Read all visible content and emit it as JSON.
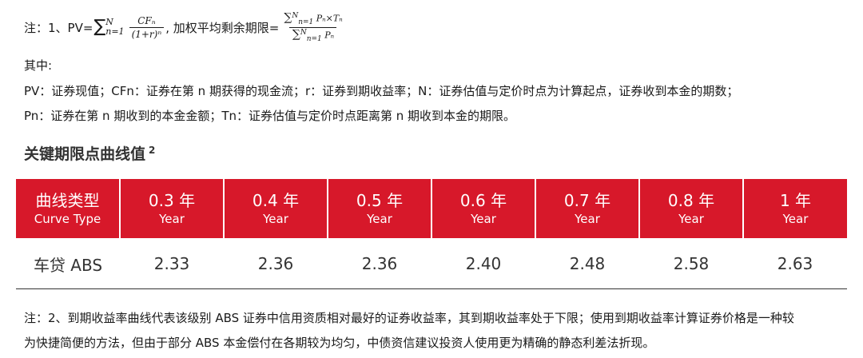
{
  "note1": {
    "prefix": "注：1、PV=",
    "sum1_upper": "N",
    "sum1_lower": "n=1",
    "frac1_num": "CFₙ",
    "frac1_den": "(1+r)ⁿ",
    "middle": ", 加权平均剩余期限=",
    "frac2_num_sup": "N",
    "frac2_num_sub": "n=1",
    "frac2_num_body": "Pₙ×Tₙ",
    "frac2_den_sup": "N",
    "frac2_den_sub": "n=1",
    "frac2_den_body": "Pₙ"
  },
  "lines": {
    "qizhong": "其中:",
    "pv_def": "PV：证券现值；CFn：证券在第 n 期获得的现金流；r：证券到期收益率；N：证券估值与定价时点为计算起点，证券收到本金的期数；",
    "pn_def": "Pn：证券在第 n 期收到的本金金额；Tn：证券估值与定价时点距离第 n 期收到本金的期限。"
  },
  "section": {
    "title": "关键期限点曲线值",
    "sup": "2"
  },
  "table": {
    "headers": [
      {
        "top": "曲线类型",
        "bottom": "Curve Type"
      },
      {
        "top": "0.3 年",
        "bottom": "Year"
      },
      {
        "top": "0.4 年",
        "bottom": "Year"
      },
      {
        "top": "0.5 年",
        "bottom": "Year"
      },
      {
        "top": "0.6 年",
        "bottom": "Year"
      },
      {
        "top": "0.7 年",
        "bottom": "Year"
      },
      {
        "top": "0.8 年",
        "bottom": "Year"
      },
      {
        "top": "1 年",
        "bottom": "Year"
      }
    ],
    "rows": [
      {
        "cells": [
          "车贷 ABS",
          "2.33",
          "2.36",
          "2.36",
          "2.40",
          "2.48",
          "2.58",
          "2.63"
        ]
      }
    ]
  },
  "note2": {
    "line1": "注：2、到期收益率曲线代表该级别 ABS 证券中信用资质相对最好的证券收益率，其到期收益率处于下限；使用到期收益率计算证券价格是一种较",
    "line2": "为快捷简便的方法，但由于部分 ABS 本金偿付在各期较为均匀，中债资信建议投资人使用更为精确的静态利差法折现。"
  },
  "colors": {
    "header_bg": "#d7182a",
    "header_text": "#ffffff"
  }
}
